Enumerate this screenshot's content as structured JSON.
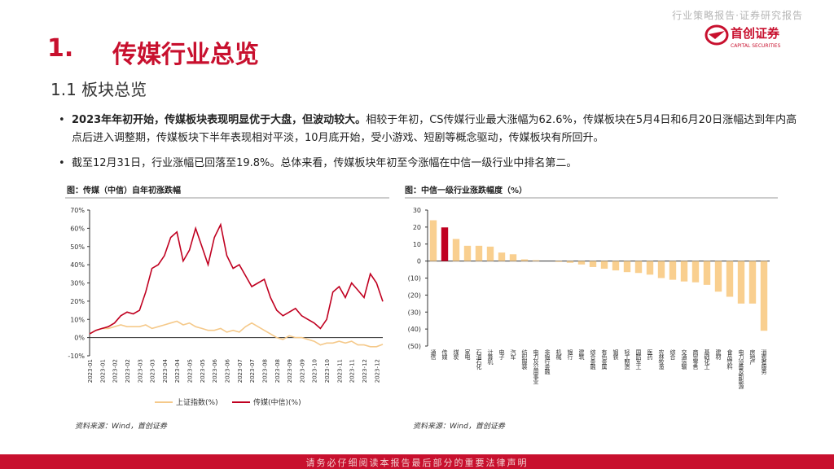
{
  "header": {
    "report_tag": "行业策略报告·证券研究报告",
    "logo_name": "首创证券",
    "logo_en": "CAPITAL SECURITIES"
  },
  "section": {
    "number": "1.",
    "title": "传媒行业总览"
  },
  "subsection": "1.1 板块总览",
  "bullets": [
    {
      "bold": "2023年年初开始，传媒板块表现明显优于大盘，但波动较大。",
      "text": "相较于年初，CS传媒行业最大涨幅为62.6%，传媒板块在5月4日和6月20日涨幅达到年内高点后进入调整期，传媒板块下半年表现相对平淡，10月底开始，受小游戏、短剧等概念驱动，传媒板块有所回升。"
    },
    {
      "text": "截至12月31日，行业涨幅已回落至19.8%。总体来看，传媒板块年初至今涨幅在中信一级行业中排名第二。"
    }
  ],
  "chart_data": [
    {
      "type": "line",
      "title": "图：传媒（中信）自年初涨跌幅",
      "source": "资料来源：Wind，首创证券",
      "categories": [
        "2023-01",
        null,
        "2023-01",
        null,
        "2023-02",
        null,
        "2023-02",
        null,
        "2023-03",
        null,
        "2023-03",
        null,
        "2023-04",
        null,
        "2023-04",
        null,
        "2023-05",
        null,
        "2023-05",
        null,
        "2023-06",
        null,
        "2023-06",
        null,
        "2023-07",
        null,
        "2023-07",
        null,
        "2023-08",
        null,
        "2023-08",
        null,
        "2023-09",
        null,
        "2023-09",
        null,
        "2023-10",
        null,
        "2023-10",
        null,
        "2023-11",
        null,
        "2023-11",
        null,
        "2023-12",
        null,
        "2023-12",
        null
      ],
      "series": [
        {
          "name": "上证指数(%)",
          "color": "#f5c98a",
          "values": [
            2,
            4,
            5,
            5,
            6,
            7,
            6,
            6,
            6,
            7,
            5,
            6,
            7,
            8,
            9,
            7,
            8,
            6,
            5,
            4,
            4,
            5,
            3,
            4,
            3,
            6,
            8,
            6,
            4,
            2,
            0,
            -1,
            1,
            0,
            0,
            -1,
            -2,
            -4,
            -3,
            -3,
            -2,
            -3,
            -2,
            -4,
            -4,
            -5,
            -5,
            -3.7
          ]
        },
        {
          "name": "传媒(中信)(%)",
          "color": "#c00020",
          "values": [
            2,
            4,
            5,
            6,
            8,
            12,
            14,
            13,
            15,
            25,
            38,
            40,
            45,
            55,
            58,
            42,
            48,
            60,
            50,
            40,
            55,
            62,
            45,
            38,
            40,
            34,
            28,
            30,
            32,
            22,
            15,
            12,
            14,
            16,
            12,
            10,
            8,
            5,
            10,
            25,
            28,
            22,
            30,
            26,
            22,
            35,
            30,
            19.8
          ]
        }
      ],
      "ylim": [
        -10,
        70
      ],
      "yticks": [
        {
          "value": -10,
          "label": "-10%"
        },
        {
          "value": 0,
          "label": "0%"
        },
        {
          "value": 10,
          "label": "10%"
        },
        {
          "value": 20,
          "label": "20%"
        },
        {
          "value": 30,
          "label": "30%"
        },
        {
          "value": 40,
          "label": "40%"
        },
        {
          "value": 50,
          "label": "50%"
        },
        {
          "value": 60,
          "label": "60%"
        },
        {
          "value": 70,
          "label": "70%"
        }
      ],
      "legend": "bottom"
    },
    {
      "type": "bar",
      "title": "图：中信一级行业涨跌幅度（%）",
      "source": "资料来源：Wind，首创证券",
      "categories": [
        "通信",
        "传媒",
        "煤炭",
        "家电",
        "石油石化",
        "计算机",
        "电子",
        "汽车",
        "纺织服装",
        "电力及公用事业",
        "非银行金融",
        "机械",
        "银行",
        "建筑",
        "综合金融",
        "有色金属",
        "钢铁",
        "轻工制造",
        "国防军工",
        "医药",
        "农林牧渔",
        "综合",
        "交通运输",
        "商贸零售",
        "基础化工",
        "建材",
        "食品饮料",
        "电力设备及新能源",
        "房地产",
        "消费者服务"
      ],
      "values": [
        24,
        19.8,
        13,
        9,
        9,
        8.5,
        5,
        4,
        1,
        0.5,
        0,
        -0.5,
        -1,
        -2,
        -3.5,
        -4.5,
        -5.5,
        -6.5,
        -7,
        -8,
        -10,
        -11,
        -12,
        -12.5,
        -14,
        -18,
        -21,
        -25,
        -25,
        -41
      ],
      "colors": [
        "#f9cf8f",
        "#c00020",
        "#f9cf8f",
        "#f9cf8f",
        "#f9cf8f",
        "#f9cf8f",
        "#f9cf8f",
        "#f9cf8f",
        "#f9cf8f",
        "#f9cf8f",
        "#f9cf8f",
        "#f9cf8f",
        "#f9cf8f",
        "#f9cf8f",
        "#f9cf8f",
        "#f9cf8f",
        "#f9cf8f",
        "#f9cf8f",
        "#f9cf8f",
        "#f9cf8f",
        "#f9cf8f",
        "#f9cf8f",
        "#f9cf8f",
        "#f9cf8f",
        "#f9cf8f",
        "#f9cf8f",
        "#f9cf8f",
        "#f9cf8f",
        "#f9cf8f",
        "#f9cf8f"
      ],
      "ylim": [
        -50,
        30
      ],
      "yticks": [
        30,
        20,
        10,
        0,
        {
          "value": -10,
          "label": "(10)"
        },
        {
          "value": -20,
          "label": "(20)"
        },
        {
          "value": -30,
          "label": "(30)"
        },
        {
          "value": -40,
          "label": "(40)"
        },
        {
          "value": -50,
          "label": "(50)"
        }
      ]
    }
  ],
  "footer": "请务必仔细阅读本报告最后部分的重要法律声明"
}
